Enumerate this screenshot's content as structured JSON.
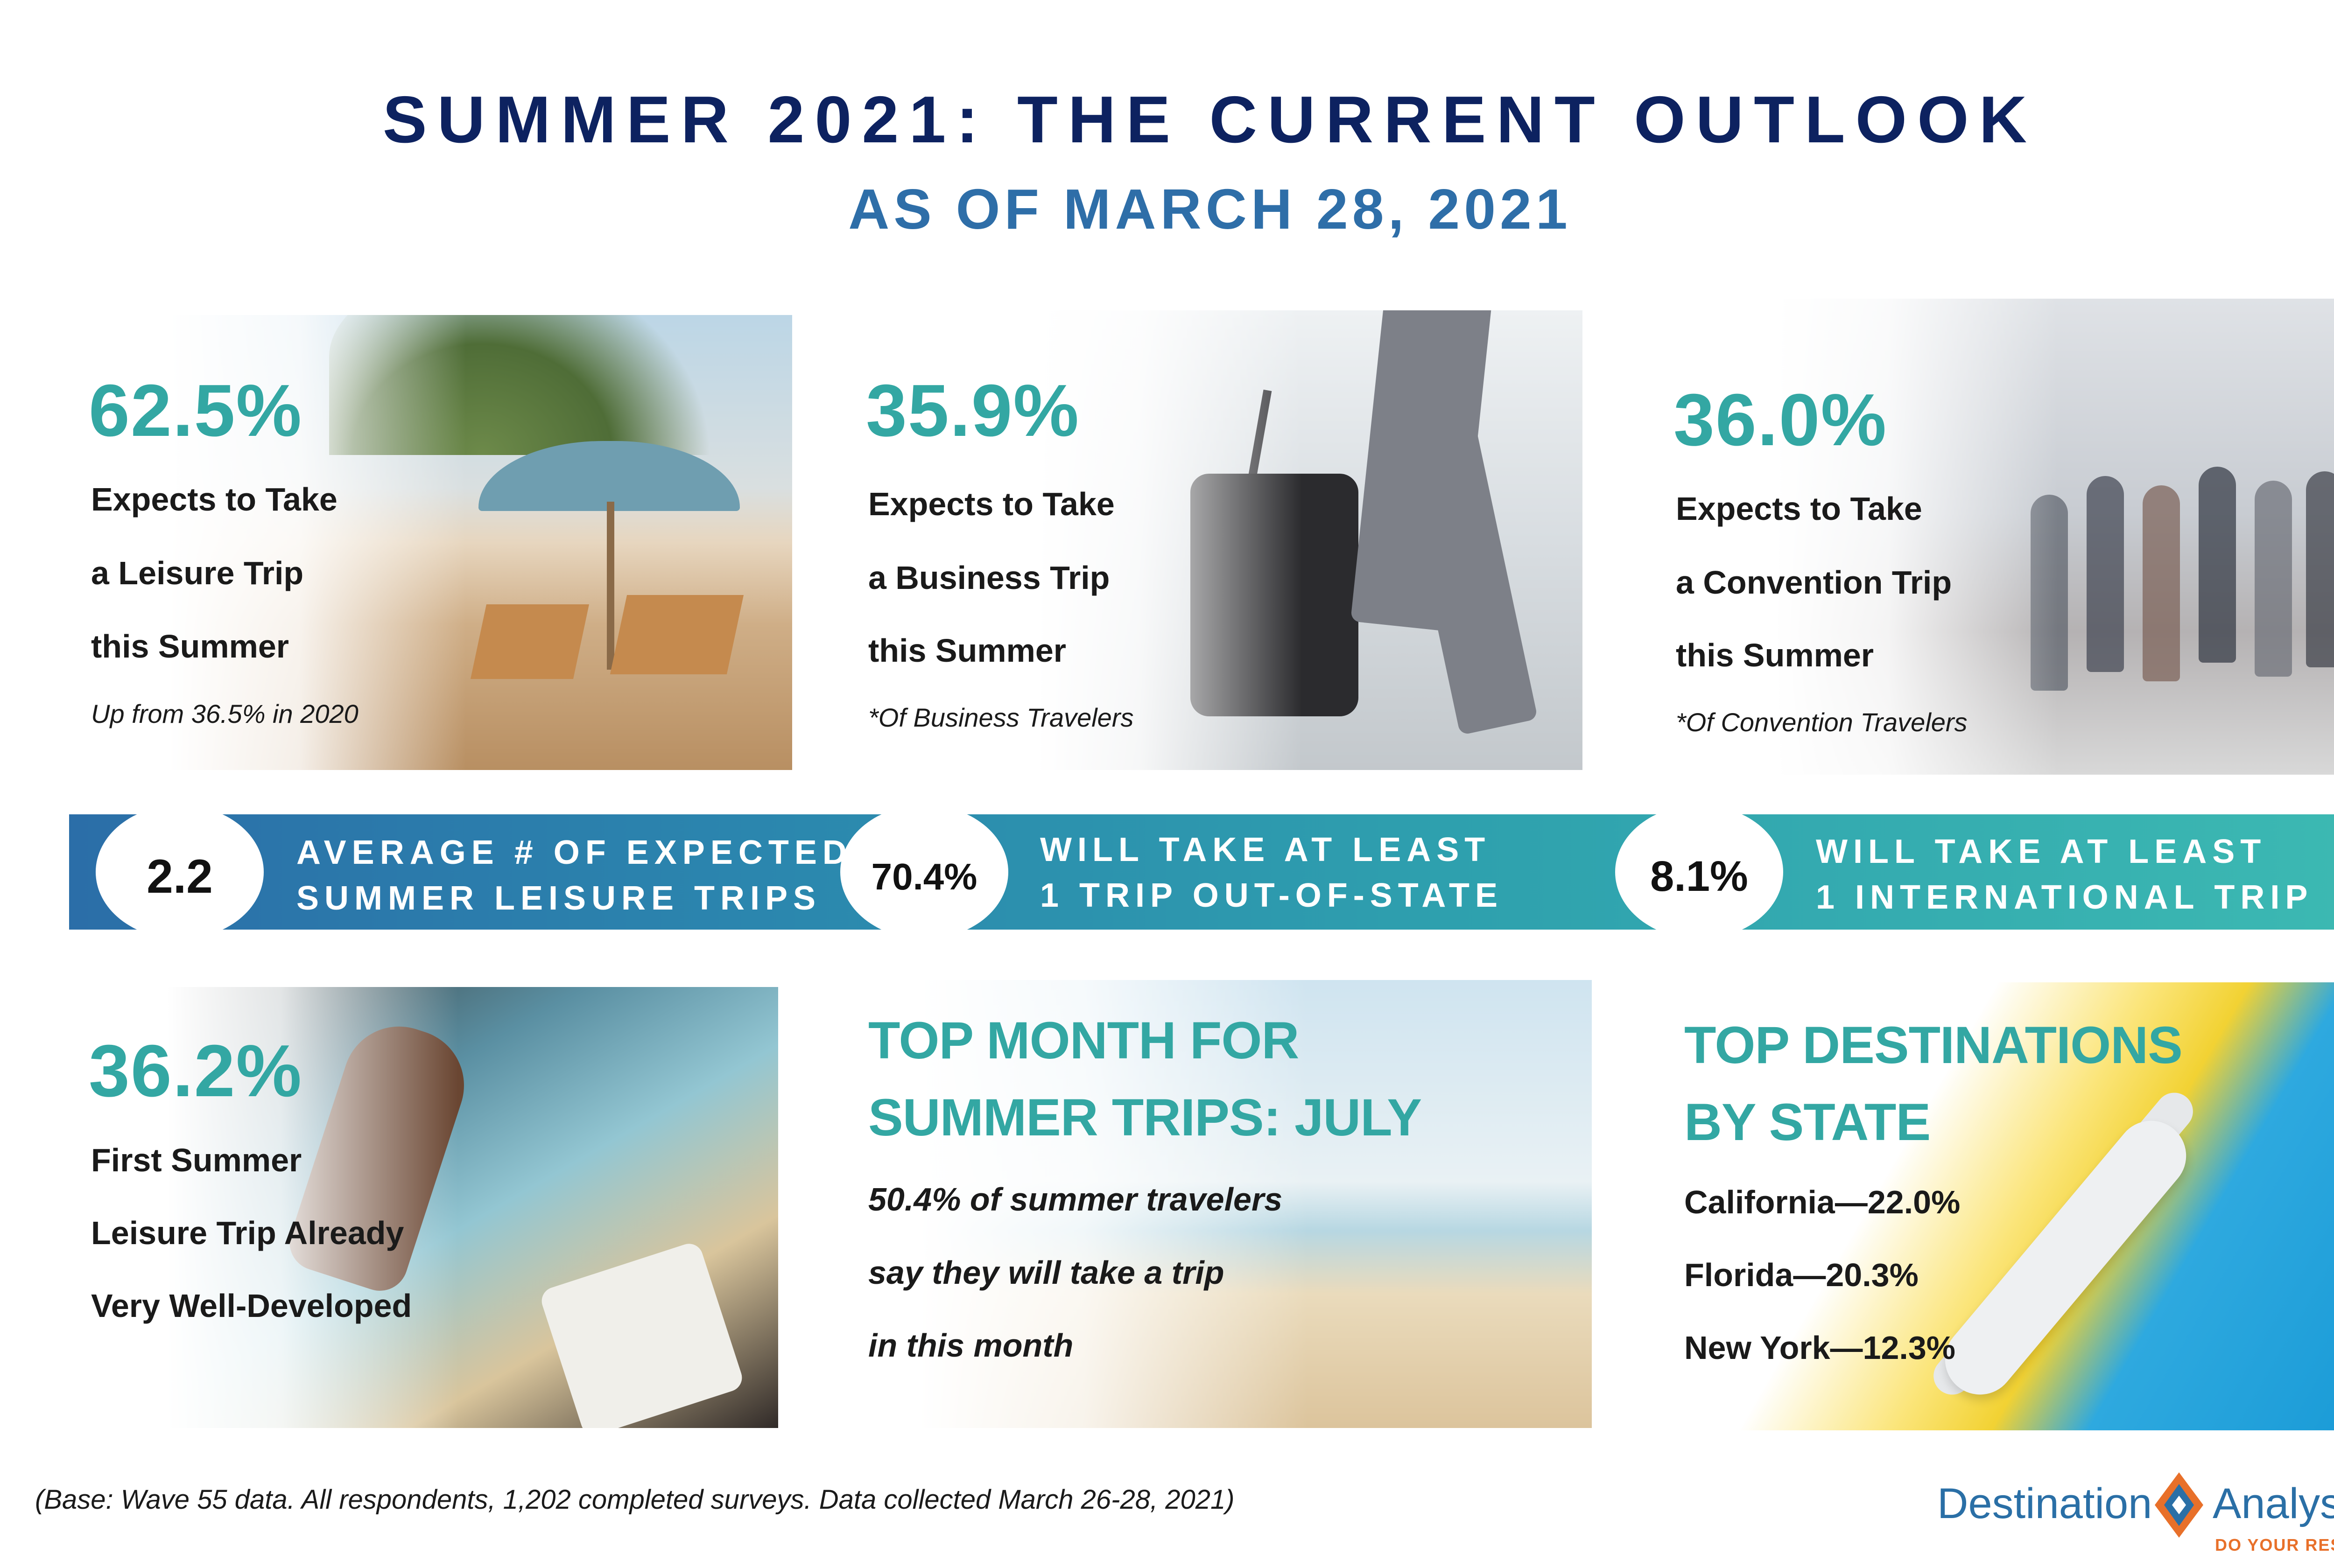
{
  "header": {
    "title": "SUMMER 2021: THE CURRENT OUTLOOK",
    "subtitle": "AS OF MARCH 28, 2021"
  },
  "leisure": {
    "pct": "62.5%",
    "lines": [
      "Expects to Take",
      "a Leisure Trip",
      "this Summer"
    ],
    "note": "Up from 36.5% in 2020"
  },
  "business": {
    "pct": "35.9%",
    "lines": [
      "Expects to Take",
      "a Business Trip",
      "this Summer"
    ],
    "note": "*Of Business Travelers"
  },
  "convention": {
    "pct": "36.0%",
    "lines": [
      "Expects to Take",
      "a Convention Trip",
      "this Summer"
    ],
    "note": "*Of Convention Travelers"
  },
  "banner": {
    "stat1": {
      "value": "2.2",
      "lines": [
        "AVERAGE # OF EXPECTED",
        "SUMMER LEISURE TRIPS"
      ]
    },
    "stat2": {
      "value": "70.4%",
      "lines": [
        "WILL TAKE AT LEAST",
        "1 TRIP OUT-OF-STATE"
      ]
    },
    "stat3": {
      "value": "8.1%",
      "lines": [
        "WILL TAKE AT LEAST",
        "1 INTERNATIONAL TRIP"
      ]
    }
  },
  "first_trip": {
    "pct": "36.2%",
    "lines": [
      "First Summer",
      "Leisure Trip Already",
      "Very Well-Developed"
    ]
  },
  "top_month": {
    "headline": [
      "TOP MONTH FOR",
      "SUMMER TRIPS: JULY"
    ],
    "lines": [
      "50.4% of summer travelers",
      "say they will take a trip",
      "in this month"
    ]
  },
  "destinations": {
    "headline": [
      "TOP DESTINATIONS",
      "BY STATE"
    ],
    "items": [
      "California—22.0%",
      "Florida—20.3%",
      "New York—12.3%"
    ]
  },
  "footer": {
    "base_note": "(Base: Wave 55 data. All respondents, 1,202 completed surveys. Data collected March 26-28, 2021)",
    "logo_left": "Destination",
    "logo_right": "Analysts",
    "tagline": "DO YOUR RESEARCH"
  },
  "colors": {
    "title": "#0d2260",
    "subtitle": "#2e6ea8",
    "teal": "#33a7a3",
    "banner_start": "#2b6ea8",
    "banner_end": "#3cb9b2",
    "logo_blue": "#2a6fa6",
    "logo_orange": "#e8702a"
  }
}
